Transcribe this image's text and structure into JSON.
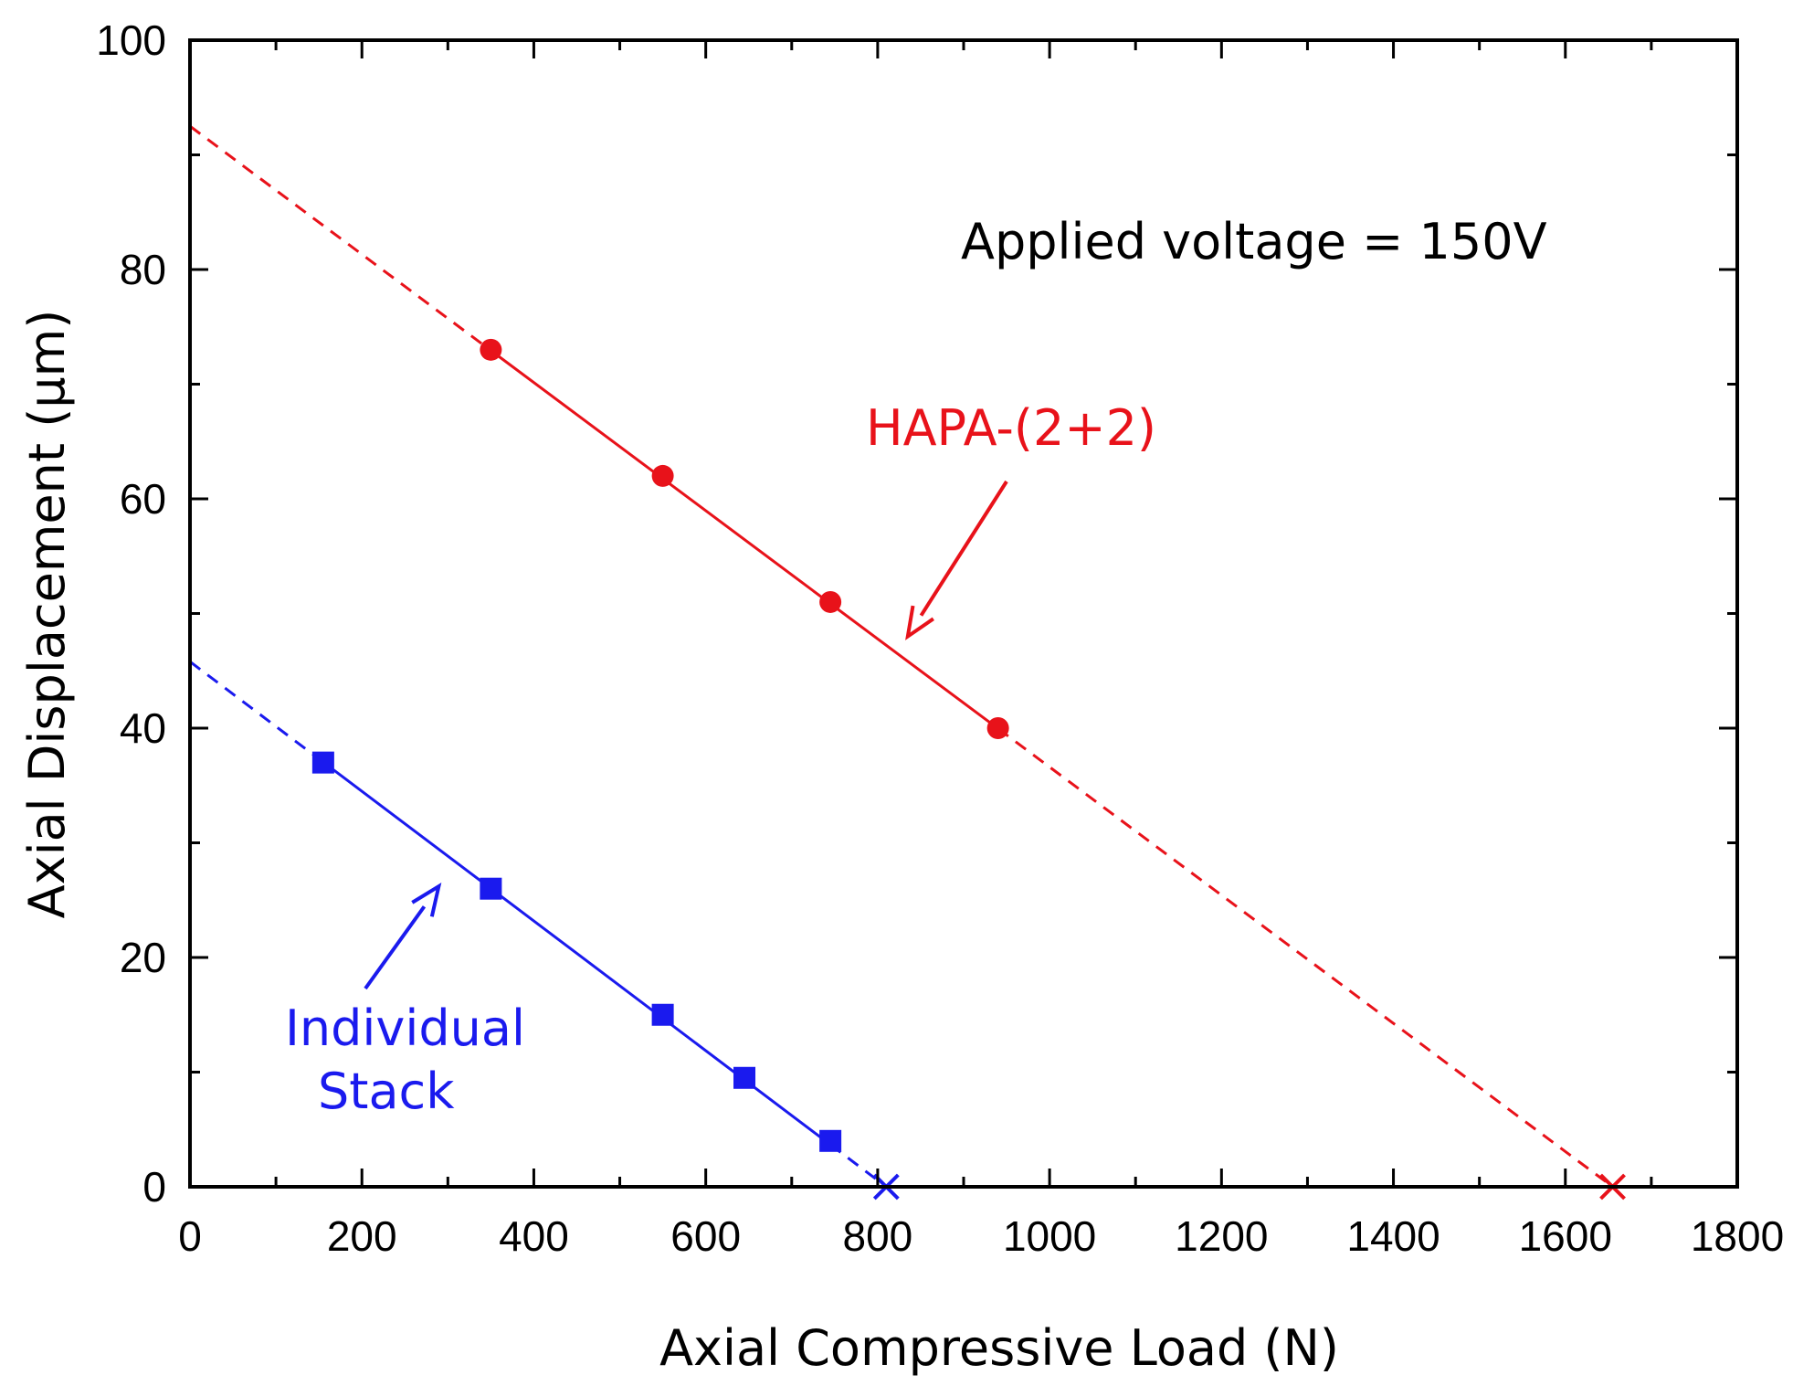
{
  "chart_data": {
    "type": "scatter",
    "title": "",
    "xlabel": "Axial Compressive Load (N)",
    "ylabel": "Axial Displacement (µm)",
    "xlim": [
      0,
      1800
    ],
    "ylim": [
      0,
      100
    ],
    "x_ticks": [
      0,
      200,
      400,
      600,
      800,
      1000,
      1200,
      1400,
      1600,
      1800
    ],
    "y_ticks": [
      0,
      20,
      40,
      60,
      80,
      100
    ],
    "x_tick_labels": [
      "0",
      "200",
      "400",
      "600",
      "800",
      "1000",
      "1200",
      "1400",
      "1600",
      "1800"
    ],
    "y_tick_labels": [
      "0",
      "20",
      "40",
      "60",
      "80",
      "100"
    ],
    "grid": false,
    "series": [
      {
        "name": "HAPA-(2+2)",
        "color": "#e8121a",
        "marker": "circle",
        "x": [
          350,
          550,
          745,
          940
        ],
        "y": [
          73,
          62,
          51,
          40
        ],
        "fit_line": {
          "x": [
            0,
            1655
          ],
          "y": [
            92.5,
            0
          ]
        },
        "blocked_force": {
          "x": 1655,
          "y": 0,
          "marker": "x"
        }
      },
      {
        "name": "Individual Stack",
        "color": "#1a1aee",
        "marker": "square",
        "x": [
          155,
          350,
          550,
          645,
          745
        ],
        "y": [
          37,
          26,
          15,
          9.5,
          4
        ],
        "fit_line": {
          "x": [
            0,
            810
          ],
          "y": [
            45.8,
            0
          ]
        },
        "blocked_force": {
          "x": 810,
          "y": 0,
          "marker": "x"
        }
      }
    ],
    "annotations": [
      {
        "text": "Applied voltage = 150V",
        "color": "#000000"
      },
      {
        "text": "HAPA-(2+2)",
        "color": "#e8121a",
        "arrow_to": {
          "x": 835,
          "y": 48
        }
      },
      {
        "text_lines": [
          "Individual",
          "Stack"
        ],
        "color": "#1a1aee",
        "arrow_to": {
          "x": 300,
          "y": 27
        }
      }
    ]
  }
}
